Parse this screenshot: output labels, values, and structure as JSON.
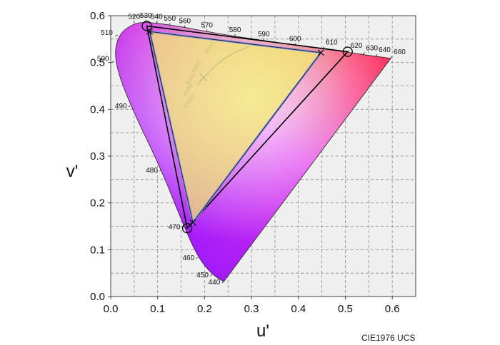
{
  "chart_data": {
    "type": "scatter",
    "subtitle": "CIE1976 UCS",
    "xlabel": "u'",
    "ylabel": "v'",
    "xlim": [
      0.0,
      0.65
    ],
    "ylim": [
      0.0,
      0.6
    ],
    "x_ticks": [
      "0.0",
      "0.1",
      "0.2",
      "0.3",
      "0.4",
      "0.5",
      "0.6"
    ],
    "y_ticks": [
      "0.0",
      "0.1",
      "0.2",
      "0.3",
      "0.4",
      "0.5",
      "0.6"
    ],
    "grid": true,
    "spectral_locus": [
      {
        "label": "440",
        "u": 0.241,
        "v": 0.032
      },
      {
        "label": "450",
        "u": 0.216,
        "v": 0.047
      },
      {
        "label": "460",
        "u": 0.186,
        "v": 0.084
      },
      {
        "label": "470",
        "u": 0.156,
        "v": 0.15
      },
      {
        "label": "480",
        "u": 0.108,
        "v": 0.271
      },
      {
        "label": "490",
        "u": 0.042,
        "v": 0.408
      },
      {
        "label": "500",
        "u": 0.007,
        "v": 0.503
      },
      {
        "label": "510",
        "u": 0.015,
        "v": 0.559
      },
      {
        "label": "520",
        "u": 0.05,
        "v": 0.584
      },
      {
        "label": "530",
        "u": 0.075,
        "v": 0.586
      },
      {
        "label": "540",
        "u": 0.098,
        "v": 0.584
      },
      {
        "label": "550",
        "u": 0.126,
        "v": 0.58
      },
      {
        "label": "560",
        "u": 0.158,
        "v": 0.575
      },
      {
        "label": "570",
        "u": 0.205,
        "v": 0.566
      },
      {
        "label": "580",
        "u": 0.265,
        "v": 0.556
      },
      {
        "label": "590",
        "u": 0.326,
        "v": 0.547
      },
      {
        "label": "600",
        "u": 0.393,
        "v": 0.537
      },
      {
        "label": "610",
        "u": 0.452,
        "v": 0.529
      },
      {
        "label": "620",
        "u": 0.505,
        "v": 0.522
      },
      {
        "label": "630",
        "u": 0.538,
        "v": 0.517
      },
      {
        "label": "640",
        "u": 0.565,
        "v": 0.513
      },
      {
        "label": "660",
        "u": 0.597,
        "v": 0.509
      }
    ],
    "series": [
      {
        "name": "",
        "vertices": [
          {
            "u": 0.077,
            "v": 0.578
          },
          {
            "u": 0.505,
            "v": 0.523
          },
          {
            "u": 0.163,
            "v": 0.146
          }
        ]
      },
      {
        "name": "",
        "vertices": [
          {
            "u": 0.083,
            "v": 0.566
          },
          {
            "u": 0.448,
            "v": 0.521
          },
          {
            "u": 0.175,
            "v": 0.158
          }
        ]
      }
    ],
    "cct_locus_labels": [
      "10000",
      "6500",
      "5000",
      "4000",
      "3000"
    ],
    "white_point": {
      "u": 0.198,
      "v": 0.468
    }
  },
  "colors": {
    "background": "#ffffff",
    "plot_background": "#efefef",
    "grid": "#888888",
    "outer_triangle": "#000000",
    "inner_triangle": "#8a96e6",
    "planckian_locus": "#c9c27a"
  }
}
